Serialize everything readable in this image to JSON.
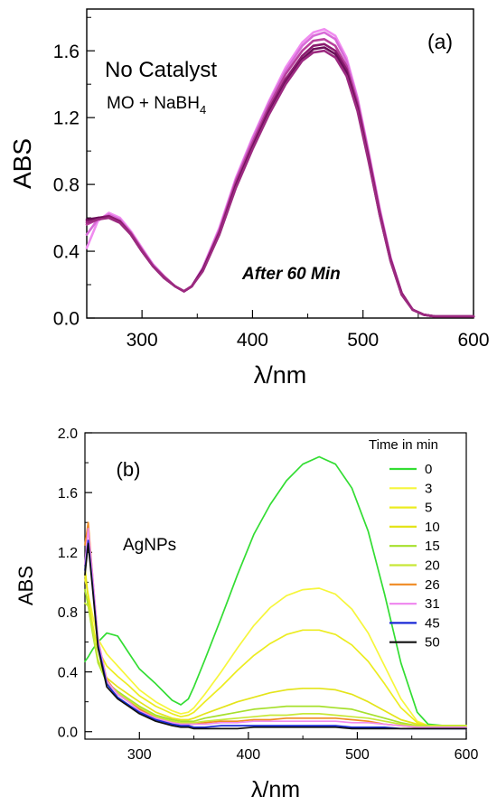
{
  "chart_data": [
    {
      "panel_label": "(a)",
      "type": "line",
      "xlabel": "λ/nm",
      "ylabel": "ABS",
      "xlim": [
        250,
        600
      ],
      "ylim": [
        0.0,
        1.85
      ],
      "x_ticks": [
        300,
        400,
        500,
        600
      ],
      "y_ticks": [
        0.0,
        0.4,
        0.8,
        1.2,
        1.6
      ],
      "x_tick_labels": [
        "300",
        "400",
        "500",
        "600"
      ],
      "y_tick_labels": [
        "0.0",
        "0.4",
        "0.8",
        "1.2",
        "1.6"
      ],
      "annotations": {
        "condition": "No Catalyst",
        "reaction_main": "MO + NaBH",
        "reaction_sub": "4",
        "note": "After 60 Min"
      },
      "x": [
        250,
        260,
        270,
        280,
        290,
        300,
        310,
        320,
        330,
        338,
        345,
        355,
        370,
        385,
        400,
        415,
        430,
        445,
        455,
        465,
        475,
        485,
        495,
        505,
        515,
        525,
        535,
        545,
        555,
        565,
        580,
        600
      ],
      "series": [
        {
          "color": "#f08cf0",
          "values": [
            0.42,
            0.58,
            0.63,
            0.6,
            0.52,
            0.42,
            0.32,
            0.25,
            0.19,
            0.16,
            0.19,
            0.3,
            0.54,
            0.84,
            1.08,
            1.3,
            1.5,
            1.65,
            1.71,
            1.73,
            1.69,
            1.56,
            1.32,
            1.0,
            0.66,
            0.36,
            0.15,
            0.05,
            0.02,
            0.01,
            0.01,
            0.01
          ]
        },
        {
          "color": "#d86cd8",
          "values": [
            0.5,
            0.59,
            0.62,
            0.59,
            0.51,
            0.41,
            0.32,
            0.25,
            0.19,
            0.16,
            0.19,
            0.3,
            0.53,
            0.83,
            1.07,
            1.29,
            1.48,
            1.63,
            1.69,
            1.71,
            1.67,
            1.54,
            1.31,
            0.99,
            0.65,
            0.36,
            0.15,
            0.05,
            0.02,
            0.01,
            0.01,
            0.01
          ]
        },
        {
          "color": "#b8409c",
          "values": [
            0.56,
            0.59,
            0.61,
            0.58,
            0.51,
            0.41,
            0.31,
            0.25,
            0.19,
            0.16,
            0.19,
            0.29,
            0.52,
            0.82,
            1.05,
            1.27,
            1.46,
            1.6,
            1.66,
            1.67,
            1.63,
            1.51,
            1.29,
            0.98,
            0.64,
            0.35,
            0.15,
            0.05,
            0.02,
            0.01,
            0.01,
            0.01
          ]
        },
        {
          "color": "#8a1a6e",
          "values": [
            0.58,
            0.6,
            0.61,
            0.58,
            0.5,
            0.4,
            0.31,
            0.24,
            0.19,
            0.16,
            0.19,
            0.29,
            0.51,
            0.8,
            1.03,
            1.25,
            1.43,
            1.57,
            1.63,
            1.64,
            1.6,
            1.49,
            1.27,
            0.96,
            0.63,
            0.35,
            0.15,
            0.05,
            0.02,
            0.01,
            0.01,
            0.01
          ]
        },
        {
          "color": "#6a0e58",
          "values": [
            0.59,
            0.6,
            0.6,
            0.57,
            0.5,
            0.4,
            0.31,
            0.24,
            0.19,
            0.16,
            0.19,
            0.29,
            0.5,
            0.79,
            1.02,
            1.23,
            1.41,
            1.55,
            1.61,
            1.62,
            1.58,
            1.47,
            1.25,
            0.95,
            0.62,
            0.34,
            0.14,
            0.05,
            0.02,
            0.01,
            0.01,
            0.01
          ]
        },
        {
          "color": "#9c2a80",
          "values": [
            0.57,
            0.59,
            0.6,
            0.57,
            0.5,
            0.4,
            0.31,
            0.24,
            0.19,
            0.16,
            0.19,
            0.28,
            0.5,
            0.78,
            1.01,
            1.22,
            1.4,
            1.54,
            1.59,
            1.6,
            1.56,
            1.45,
            1.24,
            0.94,
            0.62,
            0.34,
            0.14,
            0.05,
            0.02,
            0.01,
            0.01,
            0.01
          ]
        }
      ]
    },
    {
      "panel_label": "(b)",
      "type": "line",
      "xlabel": "λ/nm",
      "ylabel": "ABS",
      "xlim": [
        250,
        600
      ],
      "ylim": [
        -0.05,
        2.0
      ],
      "x_ticks": [
        300,
        400,
        500,
        600
      ],
      "y_ticks": [
        0.0,
        0.4,
        0.8,
        1.2,
        1.6,
        2.0
      ],
      "x_tick_labels": [
        "300",
        "400",
        "500",
        "600"
      ],
      "y_tick_labels": [
        "0.0",
        "0.4",
        "0.8",
        "1.2",
        "1.6",
        "2.0"
      ],
      "annotations": {
        "sample": "AgNPs"
      },
      "legend_title": "Time in min",
      "legend_placement": "top-right",
      "x": [
        250,
        253,
        257,
        262,
        270,
        280,
        290,
        300,
        315,
        330,
        338,
        345,
        350,
        360,
        375,
        390,
        405,
        420,
        435,
        450,
        465,
        480,
        495,
        510,
        525,
        540,
        555,
        565,
        580,
        600
      ],
      "series": [
        {
          "name": "0",
          "color": "#33dd33",
          "values": [
            0.47,
            0.5,
            0.55,
            0.6,
            0.66,
            0.64,
            0.53,
            0.42,
            0.32,
            0.21,
            0.18,
            0.22,
            0.3,
            0.48,
            0.76,
            1.05,
            1.32,
            1.52,
            1.68,
            1.79,
            1.84,
            1.79,
            1.63,
            1.34,
            0.92,
            0.46,
            0.13,
            0.05,
            0.04,
            0.04
          ]
        },
        {
          "name": "3",
          "color": "#f6f63c",
          "values": [
            1.02,
            0.92,
            0.78,
            0.62,
            0.52,
            0.44,
            0.36,
            0.28,
            0.2,
            0.14,
            0.12,
            0.13,
            0.16,
            0.25,
            0.4,
            0.56,
            0.71,
            0.83,
            0.91,
            0.95,
            0.96,
            0.92,
            0.82,
            0.66,
            0.44,
            0.22,
            0.07,
            0.04,
            0.04,
            0.04
          ]
        },
        {
          "name": "5",
          "color": "#ecec20",
          "values": [
            1.05,
            0.9,
            0.72,
            0.55,
            0.44,
            0.37,
            0.31,
            0.24,
            0.17,
            0.12,
            0.1,
            0.11,
            0.13,
            0.2,
            0.3,
            0.41,
            0.51,
            0.59,
            0.65,
            0.68,
            0.68,
            0.65,
            0.58,
            0.47,
            0.32,
            0.16,
            0.06,
            0.04,
            0.04,
            0.04
          ]
        },
        {
          "name": "10",
          "color": "#e4e41a",
          "values": [
            1.1,
            0.9,
            0.68,
            0.48,
            0.36,
            0.3,
            0.25,
            0.2,
            0.13,
            0.09,
            0.08,
            0.08,
            0.09,
            0.12,
            0.16,
            0.2,
            0.23,
            0.26,
            0.28,
            0.29,
            0.29,
            0.28,
            0.25,
            0.2,
            0.14,
            0.08,
            0.05,
            0.04,
            0.04,
            0.04
          ]
        },
        {
          "name": "15",
          "color": "#a6e02c",
          "values": [
            0.95,
            0.84,
            0.66,
            0.46,
            0.33,
            0.27,
            0.22,
            0.17,
            0.11,
            0.08,
            0.07,
            0.07,
            0.07,
            0.09,
            0.11,
            0.13,
            0.15,
            0.16,
            0.17,
            0.17,
            0.17,
            0.16,
            0.15,
            0.12,
            0.09,
            0.06,
            0.04,
            0.04,
            0.04,
            0.04
          ]
        },
        {
          "name": "20",
          "color": "#c8e838",
          "values": [
            0.86,
            0.84,
            0.68,
            0.48,
            0.33,
            0.26,
            0.21,
            0.16,
            0.1,
            0.07,
            0.06,
            0.06,
            0.06,
            0.07,
            0.08,
            0.09,
            0.1,
            0.11,
            0.11,
            0.12,
            0.12,
            0.11,
            0.1,
            0.09,
            0.07,
            0.05,
            0.04,
            0.04,
            0.04,
            0.04
          ]
        },
        {
          "name": "26",
          "color": "#f08a22",
          "values": [
            1.25,
            1.4,
            1.05,
            0.62,
            0.35,
            0.25,
            0.2,
            0.15,
            0.09,
            0.06,
            0.05,
            0.05,
            0.05,
            0.06,
            0.07,
            0.07,
            0.08,
            0.08,
            0.09,
            0.09,
            0.09,
            0.09,
            0.08,
            0.07,
            0.05,
            0.04,
            0.03,
            0.03,
            0.03,
            0.03
          ]
        },
        {
          "name": "31",
          "color": "#f08cf0",
          "values": [
            1.12,
            1.36,
            1.05,
            0.62,
            0.34,
            0.25,
            0.2,
            0.14,
            0.09,
            0.06,
            0.05,
            0.05,
            0.05,
            0.05,
            0.06,
            0.06,
            0.07,
            0.07,
            0.07,
            0.07,
            0.07,
            0.07,
            0.06,
            0.06,
            0.05,
            0.04,
            0.03,
            0.03,
            0.03,
            0.03
          ]
        },
        {
          "name": "45",
          "color": "#1a2ad6",
          "values": [
            1.08,
            1.28,
            0.98,
            0.58,
            0.32,
            0.23,
            0.18,
            0.13,
            0.08,
            0.05,
            0.04,
            0.04,
            0.03,
            0.03,
            0.04,
            0.04,
            0.04,
            0.04,
            0.04,
            0.04,
            0.04,
            0.04,
            0.03,
            0.03,
            0.03,
            0.02,
            0.02,
            0.02,
            0.02,
            0.02
          ]
        },
        {
          "name": "50",
          "color": "#111111",
          "values": [
            1.05,
            1.26,
            0.96,
            0.56,
            0.3,
            0.22,
            0.17,
            0.12,
            0.07,
            0.04,
            0.03,
            0.03,
            0.02,
            0.02,
            0.02,
            0.02,
            0.03,
            0.03,
            0.03,
            0.03,
            0.03,
            0.03,
            0.02,
            0.02,
            0.02,
            0.02,
            0.02,
            0.02,
            0.02,
            0.02
          ]
        }
      ]
    }
  ]
}
